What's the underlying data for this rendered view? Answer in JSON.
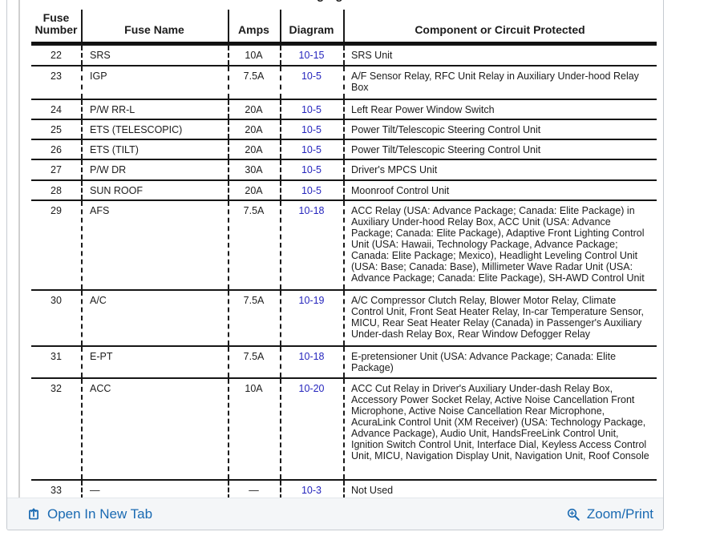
{
  "page": {
    "cutoff_title_fragment": "g g"
  },
  "table": {
    "columns": [
      "Fuse\nNumber",
      "Fuse Name",
      "Amps",
      "Diagram",
      "Component or Circuit Protected"
    ],
    "rows": [
      {
        "number": "22",
        "name": "SRS",
        "amps": "10A",
        "diagram": "10-15",
        "component": "SRS Unit"
      },
      {
        "number": "23",
        "name": "IGP",
        "amps": "7.5A",
        "diagram": "10-5",
        "component": "A/F Sensor Relay, RFC Unit Relay in Auxiliary Under-hood Relay Box"
      },
      {
        "number": "24",
        "name": "P/W RR-L",
        "amps": "20A",
        "diagram": "10-5",
        "component": "Left Rear Power Window Switch"
      },
      {
        "number": "25",
        "name": "ETS (TELESCOPIC)",
        "amps": "20A",
        "diagram": "10-5",
        "component": "Power Tilt/Telescopic Steering Control Unit"
      },
      {
        "number": "26",
        "name": "ETS (TILT)",
        "amps": "20A",
        "diagram": "10-5",
        "component": "Power Tilt/Telescopic Steering Control Unit"
      },
      {
        "number": "27",
        "name": "P/W DR",
        "amps": "30A",
        "diagram": "10-5",
        "component": "Driver's MPCS Unit"
      },
      {
        "number": "28",
        "name": "SUN ROOF",
        "amps": "20A",
        "diagram": "10-5",
        "component": "Moonroof Control Unit"
      },
      {
        "number": "29",
        "name": "AFS",
        "amps": "7.5A",
        "diagram": "10-18",
        "component": "ACC Relay (USA: Advance Package; Canada: Elite Package) in Auxiliary Under-hood Relay Box, ACC Unit (USA: Advance Package; Canada: Elite Package), Adaptive Front Lighting Control Unit (USA: Hawaii, Technology Package, Advance Package; Canada: Elite Package; Mexico), Headlight Leveling Control Unit (USA: Base; Canada: Base), Millimeter Wave Radar Unit (USA: Advance Package; Canada: Elite Package), SH-AWD Control Unit"
      },
      {
        "number": "30",
        "name": "A/C",
        "amps": "7.5A",
        "diagram": "10-19",
        "component": "A/C Compressor Clutch Relay, Blower Motor Relay, Climate Control Unit, Front Seat Heater Relay, In-car Temperature Sensor, MICU, Rear Seat Heater Relay (Canada) in Passenger's Auxiliary Under-dash Relay Box, Rear Window Defogger Relay"
      },
      {
        "number": "31",
        "name": "E-PT",
        "amps": "7.5A",
        "diagram": "10-18",
        "component": "E-pretensioner Unit (USA: Advance Package; Canada: Elite Package)"
      },
      {
        "number": "32",
        "name": "ACC",
        "amps": "10A",
        "diagram": "10-20",
        "component": "ACC Cut Relay in Driver's Auxiliary Under-dash Relay Box, Accessory Power Socket Relay, Active Noise Cancellation Front Microphone, Active Noise Cancellation Rear Microphone, AcuraLink Control Unit (XM Receiver) (USA: Technology Package, Advance Package), Audio Unit, HandsFreeLink Control Unit, Ignition Switch Control Unit, Interface Dial, Keyless Access Control Unit, MICU, Navigation Display Unit, Navigation Unit, Roof Console"
      },
      {
        "number": "33",
        "name": "—",
        "amps": "—",
        "diagram": "10-3",
        "component": "Not Used"
      }
    ]
  },
  "toolbar": {
    "open_label": "Open In New Tab",
    "zoom_label": "Zoom/Print"
  },
  "colors": {
    "diagram_link": "#2525bd",
    "toolbar_link": "#1a6ab2",
    "toolbar_bg": "#f4f6f8",
    "table_line": "#161616"
  }
}
